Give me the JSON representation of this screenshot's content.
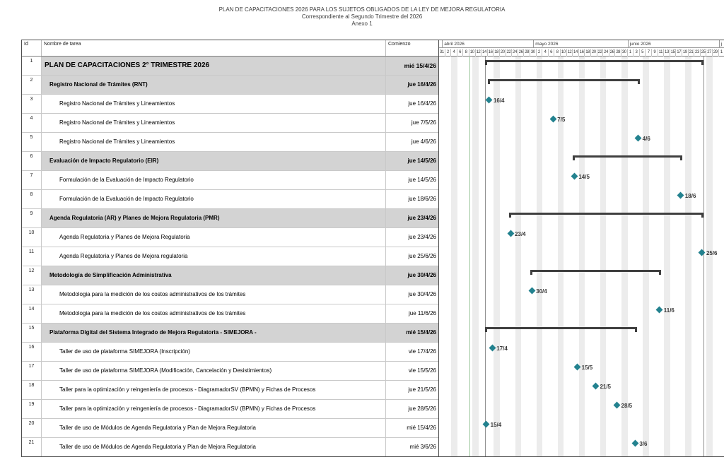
{
  "title": {
    "line1": "PLAN DE CAPACITACIONES 2026 PARA LOS SUJETOS OBLIGADOS DE LA LEY DE MEJORA REGULATORIA",
    "line2": "Correspondiente al Segundo Trimestre del 2026",
    "line3": "Anexo 1"
  },
  "table": {
    "headers": {
      "id": "Id",
      "name": "Nombre de tarea",
      "start": "Comienzo"
    }
  },
  "timeline": {
    "start": "2026-03-31",
    "end": "2026-07-03",
    "current_date_line": "2026-04-10",
    "project_start_line": "2026-04-15",
    "project_finish_line": "2026-06-26",
    "months": [
      {
        "label": "abril 2026",
        "start": "2026-04-01"
      },
      {
        "label": "mayo 2026",
        "start": "2026-05-01"
      },
      {
        "label": "junio 2026",
        "start": "2026-06-01"
      },
      {
        "label": "j",
        "start": "2026-07-01"
      }
    ],
    "ticks": [
      "31",
      "2",
      "4",
      "6",
      "8",
      "10",
      "12",
      "14",
      "16",
      "18",
      "20",
      "22",
      "24",
      "26",
      "28",
      "30",
      "2",
      "4",
      "6",
      "8",
      "10",
      "12",
      "14",
      "16",
      "18",
      "20",
      "22",
      "24",
      "26",
      "28",
      "30",
      "1",
      "3",
      "5",
      "7",
      "9",
      "11",
      "13",
      "15",
      "17",
      "19",
      "21",
      "23",
      "25",
      "27",
      "29",
      "1"
    ]
  },
  "tasks": [
    {
      "id": "1",
      "name": "PLAN DE CAPACITACIONES 2° TRIMESTRE 2026",
      "start_label": "mié 15/4/26",
      "level": 0,
      "kind": "summary",
      "from": "2026-04-15",
      "to": "2026-06-25"
    },
    {
      "id": "2",
      "name": "Registro Nacional de Trámites (RNT)",
      "start_label": "jue 16/4/26",
      "level": 1,
      "kind": "summary",
      "from": "2026-04-16",
      "to": "2026-06-04"
    },
    {
      "id": "3",
      "name": "Registro Nacional de Trámites y Lineamientos",
      "start_label": "jue 16/4/26",
      "level": 2,
      "kind": "milestone",
      "date": "2026-04-16",
      "label": "16/4"
    },
    {
      "id": "4",
      "name": "Registro Nacional de Trámites y Lineamientos",
      "start_label": "jue 7/5/26",
      "level": 2,
      "kind": "milestone",
      "date": "2026-05-07",
      "label": "7/5"
    },
    {
      "id": "5",
      "name": "Registro Nacional de Trámites y Lineamientos",
      "start_label": "jue 4/6/26",
      "level": 2,
      "kind": "milestone",
      "date": "2026-06-04",
      "label": "4/6"
    },
    {
      "id": "6",
      "name": "Evaluación de Impacto Regulatorio (EIR)",
      "start_label": "jue 14/5/26",
      "level": 1,
      "kind": "summary",
      "from": "2026-05-14",
      "to": "2026-06-18"
    },
    {
      "id": "7",
      "name": "Formulación de la Evaluación de Impacto Regulatorio",
      "start_label": "jue 14/5/26",
      "level": 2,
      "kind": "milestone",
      "date": "2026-05-14",
      "label": "14/5"
    },
    {
      "id": "8",
      "name": "Formulación de la Evaluación de Impacto Regulatorio",
      "start_label": "jue 18/6/26",
      "level": 2,
      "kind": "milestone",
      "date": "2026-06-18",
      "label": "18/6"
    },
    {
      "id": "9",
      "name": "Agenda Regulatoria (AR) y Planes de Mejora Regulatoria (PMR)",
      "start_label": "jue 23/4/26",
      "level": 1,
      "kind": "summary",
      "from": "2026-04-23",
      "to": "2026-06-25"
    },
    {
      "id": "10",
      "name": "Agenda Regulatoria y Planes de Mejora Regulatoria",
      "start_label": "jue 23/4/26",
      "level": 2,
      "kind": "milestone",
      "date": "2026-04-23",
      "label": "23/4"
    },
    {
      "id": "11",
      "name": "Agenda Regulatoria y Planes de Mejora regulatoria",
      "start_label": "jue 25/6/26",
      "level": 2,
      "kind": "milestone",
      "date": "2026-06-25",
      "label": "25/6"
    },
    {
      "id": "12",
      "name": "Metodología de Simplificación Administrativa",
      "start_label": "jue 30/4/26",
      "level": 1,
      "kind": "summary",
      "from": "2026-04-30",
      "to": "2026-06-11"
    },
    {
      "id": "13",
      "name": "Metodologia para la medición de los costos administrativos de los trámites",
      "start_label": "jue 30/4/26",
      "level": 2,
      "kind": "milestone",
      "date": "2026-04-30",
      "label": "30/4"
    },
    {
      "id": "14",
      "name": "Metodologia para la medición de los costos administrativos de los trámites",
      "start_label": "jue 11/6/26",
      "level": 2,
      "kind": "milestone",
      "date": "2026-06-11",
      "label": "11/6"
    },
    {
      "id": "15",
      "name": "Plataforma Digital del Sistema Integrado de Mejora Regulatoria - SIMEJORA -",
      "start_label": "mié 15/4/26",
      "level": 1,
      "kind": "summary",
      "from": "2026-04-15",
      "to": "2026-06-03"
    },
    {
      "id": "16",
      "name": "Taller de uso de plataforma SIMEJORA (Inscripción)",
      "start_label": "vie 17/4/26",
      "level": 2,
      "kind": "milestone",
      "date": "2026-04-17",
      "label": "17/4"
    },
    {
      "id": "17",
      "name": "Taller de uso de plataforma SIMEJORA (Modificación, Cancelación y Desistimientos)",
      "start_label": "vie 15/5/26",
      "level": 2,
      "kind": "milestone",
      "date": "2026-05-15",
      "label": "15/5"
    },
    {
      "id": "18",
      "name": "Taller para la optimización y reingeniería de procesos - DiagramadorSV (BPMN) y Fichas de Procesos",
      "start_label": "jue 21/5/26",
      "level": 2,
      "kind": "milestone",
      "date": "2026-05-21",
      "label": "21/5"
    },
    {
      "id": "19",
      "name": "Taller para la optimización y reingeniería de procesos - DiagramadorSV (BPMN) y Fichas de Procesos",
      "start_label": "jue 28/5/26",
      "level": 2,
      "kind": "milestone",
      "date": "2026-05-28",
      "label": "28/5"
    },
    {
      "id": "20",
      "name": "Taller de uso de Módulos de Agenda Regulatoria y Plan de Mejora Regulatoria",
      "start_label": "mié 15/4/26",
      "level": 2,
      "kind": "milestone",
      "date": "2026-04-15",
      "label": "15/4"
    },
    {
      "id": "21",
      "name": "Taller de uso de Módulos de Agenda Regulatoria y Plan de Mejora Regulatoria",
      "start_label": "mié 3/6/26",
      "level": 2,
      "kind": "milestone",
      "date": "2026-06-03",
      "label": "3/6"
    }
  ],
  "colors": {
    "milestone": "#23828f",
    "summary_bar": "#3f3f3f",
    "summary_row_bg": "#d3d3d3",
    "weekend_stripe": "#ececec",
    "current_date_line": "#9cc79c",
    "project_edge_line": "#8f8f8f",
    "grid": "#c9c9c9"
  },
  "chart_data": {
    "type": "bar",
    "variant": "gantt",
    "title": "PLAN DE CAPACITACIONES 2026 PARA LOS SUJETOS OBLIGADOS DE LA LEY DE MEJORA REGULATORIA",
    "subtitle": "Correspondiente al Segundo Trimestre del 2026 — Anexo 1",
    "timeline": {
      "start": "2026-03-31",
      "end": "2026-07-01",
      "unit": "day",
      "tick_interval_days": 2,
      "month_labels": [
        "abril 2026",
        "mayo 2026",
        "junio 2026"
      ],
      "weekend_shading": true
    },
    "tasks": [
      {
        "id": 1,
        "name": "PLAN DE CAPACITACIONES 2° TRIMESTRE 2026",
        "type": "summary",
        "start": "2026-04-15",
        "finish": "2026-06-25"
      },
      {
        "id": 2,
        "name": "Registro Nacional de Trámites (RNT)",
        "type": "summary",
        "start": "2026-04-16",
        "finish": "2026-06-04"
      },
      {
        "id": 3,
        "name": "Registro Nacional de Trámites y Lineamientos",
        "type": "milestone",
        "start": "2026-04-16",
        "finish": "2026-04-16"
      },
      {
        "id": 4,
        "name": "Registro Nacional de Trámites y Lineamientos",
        "type": "milestone",
        "start": "2026-05-07",
        "finish": "2026-05-07"
      },
      {
        "id": 5,
        "name": "Registro Nacional de Trámites y Lineamientos",
        "type": "milestone",
        "start": "2026-06-04",
        "finish": "2026-06-04"
      },
      {
        "id": 6,
        "name": "Evaluación de Impacto Regulatorio (EIR)",
        "type": "summary",
        "start": "2026-05-14",
        "finish": "2026-06-18"
      },
      {
        "id": 7,
        "name": "Formulación de la Evaluación de Impacto Regulatorio",
        "type": "milestone",
        "start": "2026-05-14",
        "finish": "2026-05-14"
      },
      {
        "id": 8,
        "name": "Formulación de la Evaluación de Impacto Regulatorio",
        "type": "milestone",
        "start": "2026-06-18",
        "finish": "2026-06-18"
      },
      {
        "id": 9,
        "name": "Agenda Regulatoria (AR) y Planes de Mejora Regulatoria (PMR)",
        "type": "summary",
        "start": "2026-04-23",
        "finish": "2026-06-25"
      },
      {
        "id": 10,
        "name": "Agenda Regulatoria y Planes de Mejora Regulatoria",
        "type": "milestone",
        "start": "2026-04-23",
        "finish": "2026-04-23"
      },
      {
        "id": 11,
        "name": "Agenda Regulatoria y Planes de Mejora regulatoria",
        "type": "milestone",
        "start": "2026-06-25",
        "finish": "2026-06-25"
      },
      {
        "id": 12,
        "name": "Metodología de Simplificación Administrativa",
        "type": "summary",
        "start": "2026-04-30",
        "finish": "2026-06-11"
      },
      {
        "id": 13,
        "name": "Metodologia para la medición de los costos administrativos de los trámites",
        "type": "milestone",
        "start": "2026-04-30",
        "finish": "2026-04-30"
      },
      {
        "id": 14,
        "name": "Metodologia para la medición de los costos administrativos de los trámites",
        "type": "milestone",
        "start": "2026-06-11",
        "finish": "2026-06-11"
      },
      {
        "id": 15,
        "name": "Plataforma Digital del Sistema Integrado de Mejora Regulatoria - SIMEJORA -",
        "type": "summary",
        "start": "2026-04-15",
        "finish": "2026-06-03"
      },
      {
        "id": 16,
        "name": "Taller de uso de plataforma SIMEJORA (Inscripción)",
        "type": "milestone",
        "start": "2026-04-17",
        "finish": "2026-04-17"
      },
      {
        "id": 17,
        "name": "Taller de uso de plataforma SIMEJORA (Modificación, Cancelación y Desistimientos)",
        "type": "milestone",
        "start": "2026-05-15",
        "finish": "2026-05-15"
      },
      {
        "id": 18,
        "name": "Taller para la optimización y reingeniería de procesos - DiagramadorSV (BPMN) y Fichas de Procesos",
        "type": "milestone",
        "start": "2026-05-21",
        "finish": "2026-05-21"
      },
      {
        "id": 19,
        "name": "Taller para la optimización y reingeniería de procesos - DiagramadorSV (BPMN) y Fichas de Procesos",
        "type": "milestone",
        "start": "2026-05-28",
        "finish": "2026-05-28"
      },
      {
        "id": 20,
        "name": "Taller de uso de Módulos de Agenda Regulatoria y Plan de Mejora Regulatoria",
        "type": "milestone",
        "start": "2026-04-15",
        "finish": "2026-04-15"
      },
      {
        "id": 21,
        "name": "Taller de uso de Módulos de Agenda Regulatoria y Plan de Mejora Regulatoria",
        "type": "milestone",
        "start": "2026-06-03",
        "finish": "2026-06-03"
      }
    ]
  }
}
